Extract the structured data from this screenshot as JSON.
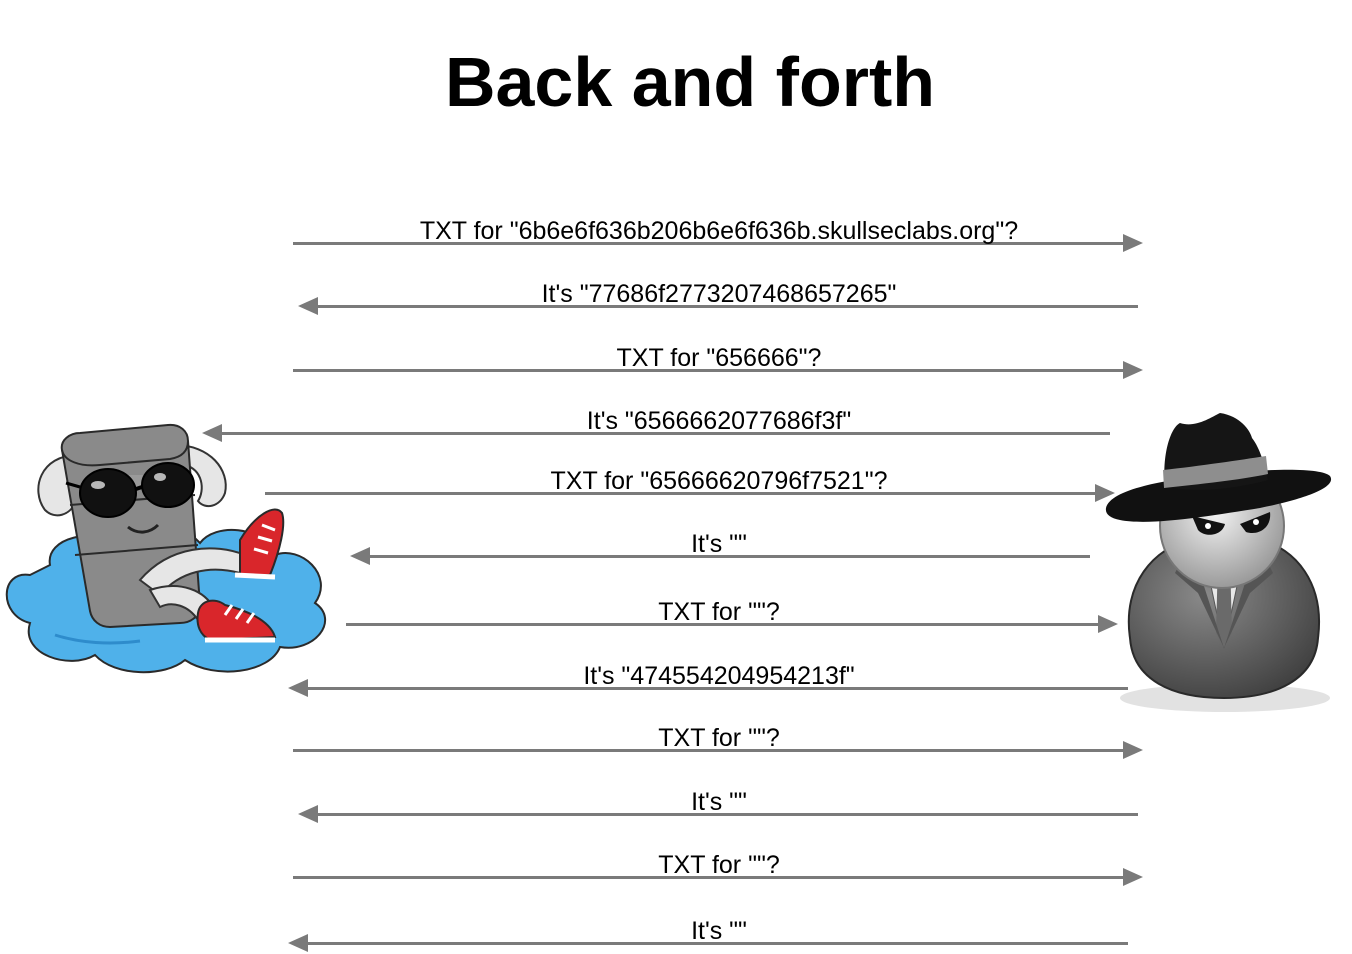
{
  "title": "Back and forth",
  "messages": [
    {
      "label": "TXT for \"6b6e6f636b206b6e6f636b.skullseclabs.org\"?",
      "direction": "right"
    },
    {
      "label": "It's \"77686f2773207468657265\"",
      "direction": "left"
    },
    {
      "label": "TXT for \"656666\"?",
      "direction": "right"
    },
    {
      "label": "It's \"6566662077686f3f\"",
      "direction": "left"
    },
    {
      "label": "TXT for \"65666620796f7521\"?",
      "direction": "right"
    },
    {
      "label": "It's \"\"",
      "direction": "left"
    },
    {
      "label": "TXT for \"\"?",
      "direction": "right"
    },
    {
      "label": "It's \"474554204954213f\"",
      "direction": "left"
    },
    {
      "label": "TXT for \"\"?",
      "direction": "right"
    },
    {
      "label": "It's \"\"",
      "direction": "left"
    },
    {
      "label": "TXT for \"\"?",
      "direction": "right"
    },
    {
      "label": "It's \"\"",
      "direction": "left"
    }
  ],
  "colors": {
    "arrow": "#7a7a7a",
    "cloud": "#4fb1ea",
    "shoe": "#d9262b",
    "hat": "#111111",
    "coat": "#6b6b6b"
  },
  "icons": {
    "left_figure": "relaxing-server-on-cloud-icon",
    "right_figure": "spy-with-hat-icon"
  }
}
